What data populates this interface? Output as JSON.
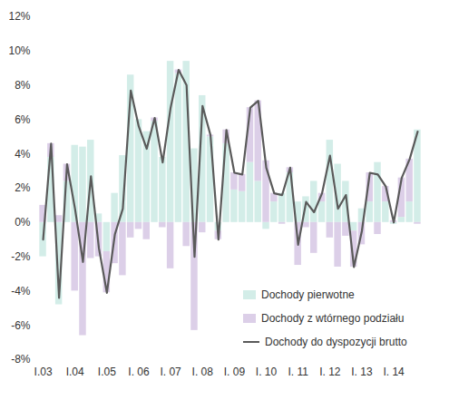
{
  "chart_data": {
    "type": "bar",
    "stacked": true,
    "categories": [
      "I.03",
      null,
      null,
      null,
      "I.04",
      null,
      null,
      null,
      "I.05",
      null,
      null,
      null,
      "I. 06",
      null,
      null,
      null,
      "I. 07",
      null,
      null,
      null,
      "I. 08",
      null,
      null,
      null,
      "I. 09",
      null,
      null,
      null,
      "I. 10",
      null,
      null,
      null,
      "I. 11",
      null,
      null,
      null,
      "I. 12",
      null,
      null,
      null,
      "I. 13",
      null,
      null,
      null,
      "I. 14",
      null,
      null,
      null
    ],
    "series": [
      {
        "name": "Dochody pierwotne",
        "type": "bar",
        "color": "#d3ede8",
        "values": [
          -2.0,
          3.8,
          -4.8,
          2.4,
          4.5,
          4.4,
          4.8,
          0.5,
          -1.7,
          1.7,
          3.9,
          8.6,
          6.0,
          5.3,
          5.9,
          3.8,
          9.4,
          8.7,
          9.4,
          4.3,
          7.4,
          5.0,
          -0.5,
          4.6,
          1.9,
          1.8,
          3.5,
          2.4,
          -0.4,
          1.2,
          1.7,
          2.9,
          1.2,
          1.5,
          2.4,
          1.2,
          4.8,
          3.4,
          2.4,
          -0.5,
          0.8,
          1.2,
          3.5,
          1.2,
          -0.1,
          0.3,
          1.2,
          5.4
        ]
      },
      {
        "name": "Dochody z wtórnego podziału",
        "type": "bar",
        "color": "#dccfe8",
        "values": [
          1.0,
          0.8,
          0.4,
          1.0,
          -4.0,
          -6.6,
          -2.1,
          -2.0,
          -2.4,
          -2.4,
          -3.1,
          -0.9,
          -0.4,
          -1.0,
          0.2,
          -0.3,
          -2.7,
          0.2,
          -1.4,
          -6.3,
          -0.6,
          0.1,
          -0.5,
          0.8,
          1.0,
          1.0,
          3.2,
          4.7,
          3.6,
          0.5,
          -0.1,
          0.3,
          -2.5,
          -0.3,
          -1.8,
          0.5,
          -0.9,
          -2.6,
          -0.8,
          -2.1,
          -1.3,
          1.7,
          -0.7,
          0.9,
          0.1,
          2.3,
          2.5,
          -0.1
        ]
      },
      {
        "name": "Dochody do dyspozycji brutto",
        "type": "line",
        "color": "#5a5a5a",
        "values": [
          -1.0,
          4.6,
          -4.4,
          3.4,
          0.8,
          -2.3,
          2.7,
          -1.5,
          -4.1,
          -0.7,
          0.8,
          7.7,
          5.6,
          4.3,
          6.1,
          3.5,
          6.7,
          8.9,
          8.0,
          -2.0,
          6.8,
          5.1,
          -1.0,
          5.4,
          2.9,
          2.8,
          6.7,
          7.1,
          3.2,
          1.7,
          1.6,
          3.2,
          -1.3,
          1.2,
          0.6,
          1.7,
          3.9,
          0.8,
          1.6,
          -2.6,
          -0.5,
          2.9,
          2.8,
          2.1,
          0.0,
          2.6,
          3.7,
          5.3
        ]
      }
    ],
    "ylim": [
      -8,
      12
    ],
    "yticks": [
      {
        "value": -8,
        "label": "-8%"
      },
      {
        "value": -6,
        "label": "-6%"
      },
      {
        "value": -4,
        "label": "-4%"
      },
      {
        "value": -2,
        "label": "-2%"
      },
      {
        "value": 0,
        "label": "0%"
      },
      {
        "value": 2,
        "label": "2%"
      },
      {
        "value": 4,
        "label": "4%"
      },
      {
        "value": 6,
        "label": "6%"
      },
      {
        "value": 8,
        "label": "8%"
      },
      {
        "value": 10,
        "label": "10%"
      },
      {
        "value": 12,
        "label": "12%"
      }
    ],
    "grid": false,
    "legend": "bottom-right"
  }
}
